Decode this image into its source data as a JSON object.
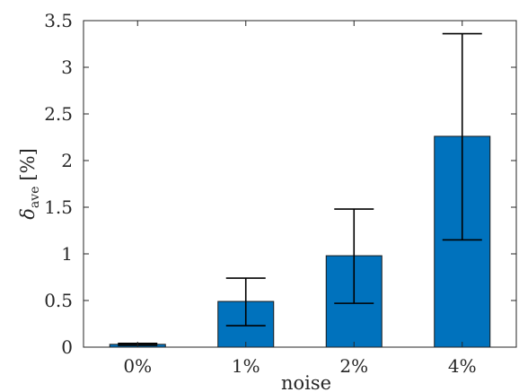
{
  "chart_data": {
    "type": "bar",
    "categories": [
      "0%",
      "1%",
      "2%",
      "4%"
    ],
    "values": [
      0.03,
      0.49,
      0.98,
      2.26
    ],
    "error_low": [
      0.02,
      0.23,
      0.47,
      1.15
    ],
    "error_high": [
      0.04,
      0.74,
      1.48,
      3.36
    ],
    "xlabel": "noise",
    "ylabel": {
      "symbol": "δ",
      "subscript": "ave",
      "unit": "[%]"
    },
    "ylim": [
      0,
      3.5
    ],
    "yticks": [
      0,
      0.5,
      1,
      1.5,
      2,
      2.5,
      3,
      3.5
    ],
    "ytick_labels": [
      "0",
      "0.5",
      "1",
      "1.5",
      "2",
      "2.5",
      "3",
      "3.5"
    ],
    "grid": false,
    "colors": {
      "bar": "#0072BD",
      "bar_edge": "#1a1a1a",
      "error_bar": "#000000",
      "axis": "#262626"
    }
  }
}
